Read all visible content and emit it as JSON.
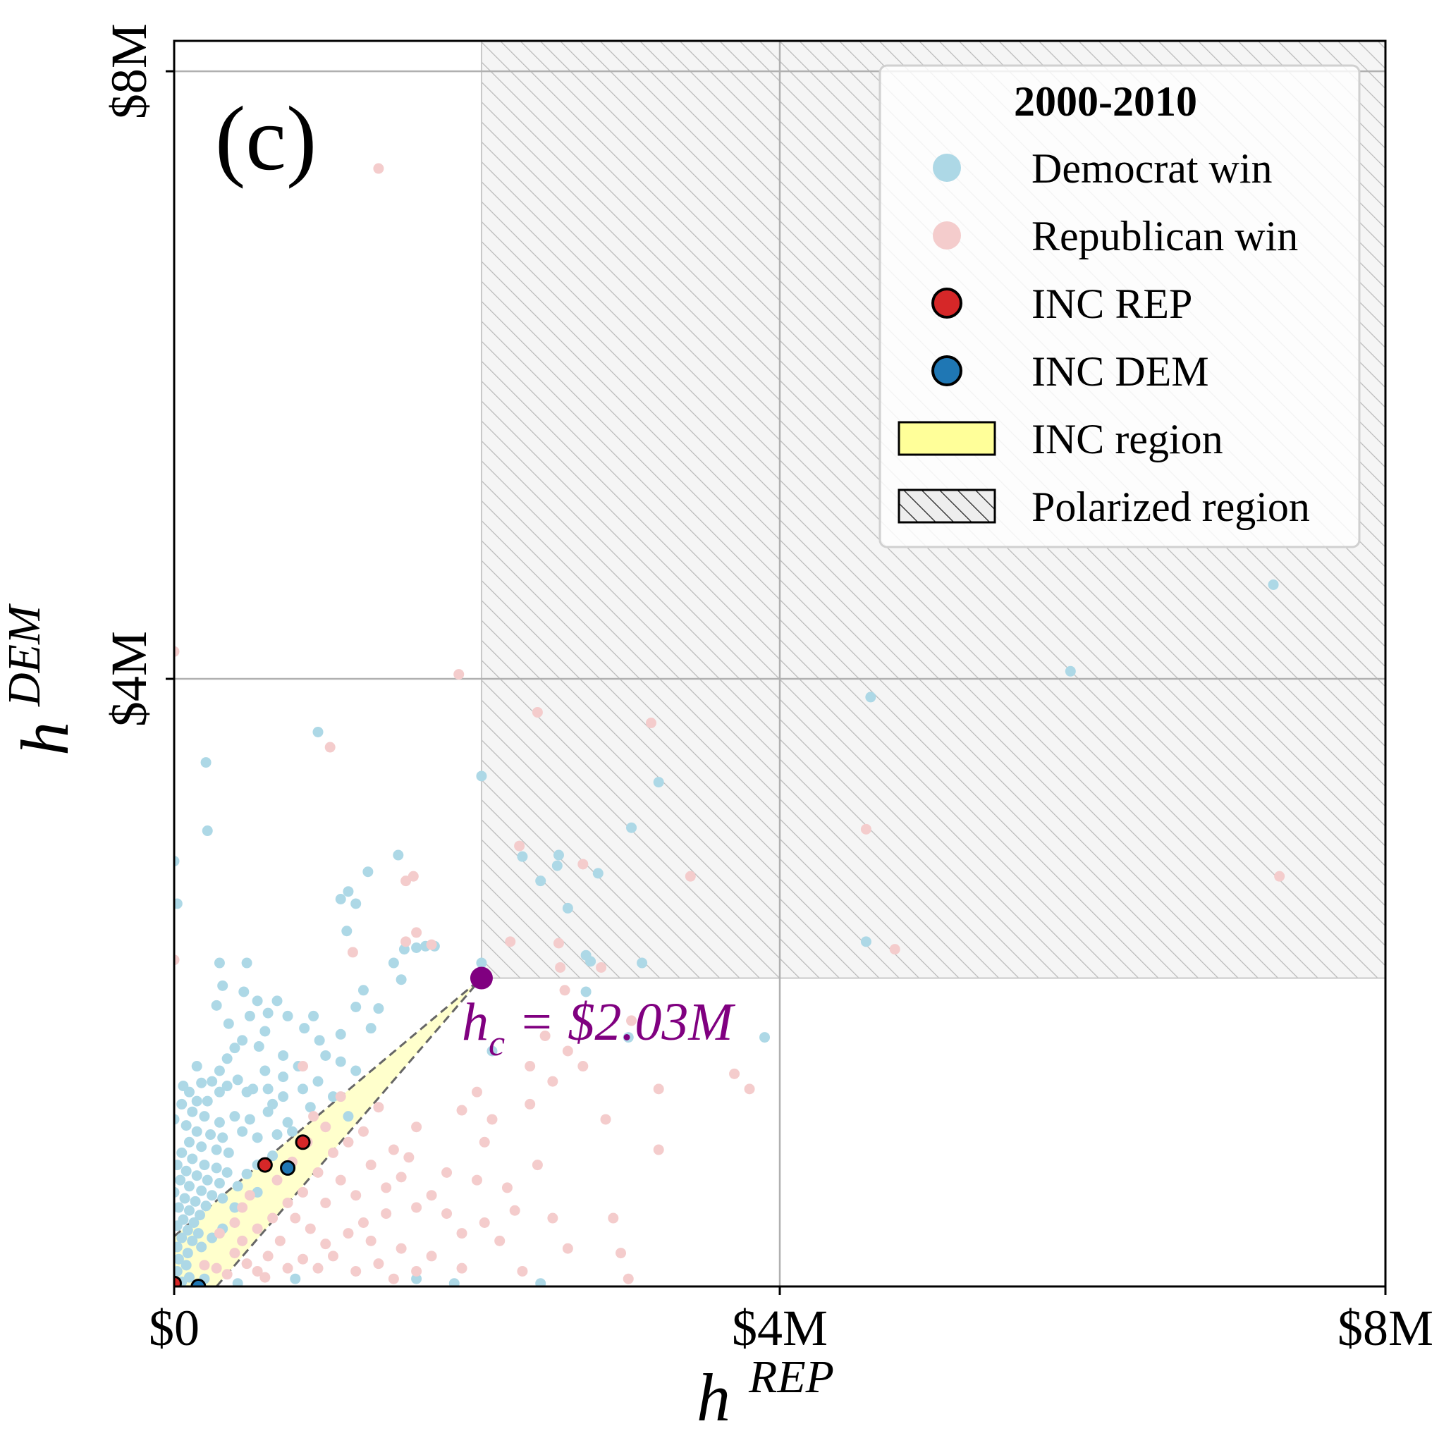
{
  "chart_data": {
    "type": "scatter",
    "panel_label": "(c)",
    "xlabel": "h",
    "xlabel_sup": "REP",
    "ylabel": "h",
    "ylabel_sup": "DEM",
    "xlim": [
      0,
      8
    ],
    "ylim": [
      0,
      8.2
    ],
    "units": "$M",
    "x_ticks": [
      {
        "value": 0,
        "label": "$0"
      },
      {
        "value": 4,
        "label": "$4M"
      },
      {
        "value": 8,
        "label": "$8M"
      }
    ],
    "y_ticks": [
      {
        "value": 4,
        "label": "$4M"
      },
      {
        "value": 8,
        "label": "$8M"
      }
    ],
    "grid": true,
    "polarized_threshold": 2.03,
    "critical_point": {
      "x": 2.03,
      "y": 2.03,
      "label_main": "h",
      "label_sub": "c",
      "label_value": " = $2.03M",
      "color": "#800080"
    },
    "inc_region": [
      [
        0,
        0.33
      ],
      [
        2.03,
        2.03
      ],
      [
        0.28,
        0
      ],
      [
        0,
        0
      ]
    ],
    "legend": {
      "title": "2000-2010",
      "position": "top-right",
      "entries": [
        {
          "label": "Democrat win",
          "kind": "dot",
          "color": "#add8e6"
        },
        {
          "label": "Republican win",
          "kind": "dot",
          "color": "#f4cccc"
        },
        {
          "label": "INC REP",
          "kind": "marker",
          "color": "#d62728"
        },
        {
          "label": "INC DEM",
          "kind": "marker",
          "color": "#1f77b4"
        },
        {
          "label": "INC region",
          "kind": "patch",
          "color": "#ffff99"
        },
        {
          "label": "Polarized region",
          "kind": "hatch",
          "color": "#eeeeee"
        }
      ]
    },
    "series": [
      {
        "name": "Democrat win",
        "color": "#add8e6",
        "points": [
          [
            7.26,
            4.62
          ],
          [
            5.92,
            4.05
          ],
          [
            4.6,
            3.88
          ],
          [
            4.57,
            2.27
          ],
          [
            3.2,
            3.32
          ],
          [
            3.02,
            3.02
          ],
          [
            2.8,
            2.72
          ],
          [
            2.53,
            2.77
          ],
          [
            2.54,
            2.84
          ],
          [
            2.42,
            2.67
          ],
          [
            2.3,
            2.83
          ],
          [
            2.03,
            3.36
          ],
          [
            2.03,
            2.13
          ],
          [
            2.75,
            2.14
          ],
          [
            2.72,
            2.18
          ],
          [
            3.09,
            2.13
          ],
          [
            2.72,
            1.94
          ],
          [
            3.9,
            1.64
          ],
          [
            2.6,
            2.49
          ],
          [
            3.0,
            1.64
          ],
          [
            2.1,
            1.55
          ],
          [
            1.28,
            2.73
          ],
          [
            1.48,
            2.84
          ],
          [
            1.1,
            2.55
          ],
          [
            1.15,
            2.6
          ],
          [
            1.2,
            2.52
          ],
          [
            1.66,
            2.24
          ],
          [
            1.72,
            2.24
          ],
          [
            1.52,
            2.22
          ],
          [
            1.6,
            2.23
          ],
          [
            0.95,
            3.65
          ],
          [
            0.21,
            3.45
          ],
          [
            0.22,
            3.0
          ],
          [
            0.0,
            2.8
          ],
          [
            0.02,
            2.52
          ],
          [
            1.14,
            2.34
          ],
          [
            1.45,
            2.13
          ],
          [
            1.5,
            2.02
          ],
          [
            1.25,
            1.95
          ],
          [
            1.35,
            1.83
          ],
          [
            1.2,
            1.84
          ],
          [
            0.92,
            1.78
          ],
          [
            1.1,
            1.66
          ],
          [
            1.3,
            1.7
          ],
          [
            0.68,
            1.88
          ],
          [
            0.46,
            1.94
          ],
          [
            0.32,
            1.98
          ],
          [
            0.3,
            2.13
          ],
          [
            0.48,
            2.13
          ],
          [
            0.55,
            1.88
          ],
          [
            0.6,
            1.68
          ],
          [
            0.5,
            1.78
          ],
          [
            0.28,
            1.85
          ],
          [
            0.36,
            1.73
          ],
          [
            0.4,
            1.57
          ],
          [
            0.62,
            1.8
          ],
          [
            0.75,
            1.78
          ],
          [
            0.86,
            1.7
          ],
          [
            0.96,
            1.62
          ],
          [
            1.0,
            1.52
          ],
          [
            1.1,
            1.48
          ],
          [
            1.2,
            1.42
          ],
          [
            0.82,
            1.45
          ],
          [
            0.72,
            1.52
          ],
          [
            0.56,
            1.58
          ],
          [
            0.45,
            1.62
          ],
          [
            0.35,
            1.5
          ],
          [
            0.3,
            1.42
          ],
          [
            0.25,
            1.35
          ],
          [
            0.15,
            1.45
          ],
          [
            0.18,
            1.34
          ],
          [
            0.06,
            1.32
          ],
          [
            0.1,
            1.28
          ],
          [
            0.22,
            1.22
          ],
          [
            0.3,
            1.28
          ],
          [
            0.35,
            1.32
          ],
          [
            0.48,
            1.28
          ],
          [
            0.62,
            1.3
          ],
          [
            0.72,
            1.25
          ],
          [
            0.85,
            1.3
          ],
          [
            0.9,
            1.18
          ],
          [
            0.75,
            1.08
          ],
          [
            0.62,
            1.15
          ],
          [
            0.5,
            1.1
          ],
          [
            0.4,
            1.12
          ],
          [
            0.3,
            1.08
          ],
          [
            0.2,
            1.12
          ],
          [
            0.15,
            1.22
          ],
          [
            0.12,
            1.15
          ],
          [
            0.05,
            1.2
          ],
          [
            0.0,
            1.1
          ],
          [
            0.08,
            1.06
          ],
          [
            0.15,
            1.02
          ],
          [
            0.24,
            1.0
          ],
          [
            0.32,
            0.98
          ],
          [
            0.45,
            1.02
          ],
          [
            0.55,
            0.98
          ],
          [
            0.68,
            1.0
          ],
          [
            0.78,
            1.02
          ],
          [
            0.65,
            1.2
          ],
          [
            0.52,
            1.3
          ],
          [
            0.42,
            1.36
          ],
          [
            0.6,
            1.42
          ],
          [
            0.72,
            1.38
          ],
          [
            0.1,
            0.95
          ],
          [
            0.18,
            0.92
          ],
          [
            0.28,
            0.9
          ],
          [
            0.36,
            0.88
          ],
          [
            0.05,
            0.88
          ],
          [
            0.12,
            0.84
          ],
          [
            0.2,
            0.8
          ],
          [
            0.28,
            0.78
          ],
          [
            0.35,
            0.75
          ],
          [
            0.02,
            0.8
          ],
          [
            0.08,
            0.76
          ],
          [
            0.15,
            0.73
          ],
          [
            0.22,
            0.7
          ],
          [
            0.3,
            0.68
          ],
          [
            0.04,
            0.7
          ],
          [
            0.1,
            0.66
          ],
          [
            0.18,
            0.63
          ],
          [
            0.25,
            0.6
          ],
          [
            0.0,
            0.62
          ],
          [
            0.07,
            0.58
          ],
          [
            0.14,
            0.56
          ],
          [
            0.21,
            0.53
          ],
          [
            0.03,
            0.52
          ],
          [
            0.1,
            0.5
          ],
          [
            0.17,
            0.47
          ],
          [
            0.06,
            0.44
          ],
          [
            0.13,
            0.42
          ],
          [
            0.02,
            0.4
          ],
          [
            0.09,
            0.37
          ],
          [
            0.16,
            0.35
          ],
          [
            0.05,
            0.32
          ],
          [
            0.12,
            0.3
          ],
          [
            0.02,
            0.26
          ],
          [
            0.09,
            0.22
          ],
          [
            0.03,
            0.18
          ],
          [
            0.08,
            0.14
          ],
          [
            0.02,
            0.1
          ],
          [
            0.1,
            0.06
          ],
          [
            0.05,
            0.03
          ],
          [
            0.42,
            0.66
          ],
          [
            0.48,
            0.74
          ],
          [
            0.55,
            0.8
          ],
          [
            0.65,
            0.86
          ],
          [
            0.32,
            0.58
          ],
          [
            0.4,
            0.52
          ],
          [
            0.55,
            0.62
          ],
          [
            0.18,
            0.26
          ],
          [
            0.25,
            0.32
          ],
          [
            0.32,
            0.38
          ],
          [
            0.42,
            0.02
          ],
          [
            1.85,
            0.02
          ],
          [
            2.42,
            0.02
          ],
          [
            0.8,
            0.05
          ],
          [
            1.6,
            0.05
          ],
          [
            0.2,
            0.05
          ],
          [
            1.05,
            1.25
          ],
          [
            0.95,
            1.35
          ],
          [
            1.15,
            1.12
          ]
        ]
      },
      {
        "name": "Republican win",
        "color": "#f4cccc",
        "points": [
          [
            1.35,
            7.36
          ],
          [
            1.88,
            4.03
          ],
          [
            2.4,
            3.78
          ],
          [
            3.15,
            3.71
          ],
          [
            4.57,
            3.01
          ],
          [
            7.3,
            2.7
          ],
          [
            3.41,
            2.7
          ],
          [
            2.28,
            2.9
          ],
          [
            2.7,
            2.78
          ],
          [
            1.03,
            3.55
          ],
          [
            1.53,
            2.67
          ],
          [
            1.58,
            2.7
          ],
          [
            1.6,
            2.33
          ],
          [
            1.7,
            2.25
          ],
          [
            1.53,
            2.27
          ],
          [
            1.18,
            2.2
          ],
          [
            2.22,
            2.27
          ],
          [
            2.55,
            2.1
          ],
          [
            2.54,
            2.26
          ],
          [
            2.82,
            2.1
          ],
          [
            4.76,
            2.22
          ],
          [
            3.8,
            1.3
          ],
          [
            2.7,
            1.45
          ],
          [
            2.6,
            1.55
          ],
          [
            2.5,
            1.35
          ],
          [
            3.2,
            1.3
          ],
          [
            3.7,
            1.4
          ],
          [
            2.85,
            1.1
          ],
          [
            3.2,
            0.9
          ],
          [
            2.35,
            1.2
          ],
          [
            2.4,
            0.8
          ],
          [
            2.1,
            1.1
          ],
          [
            2.0,
            1.28
          ],
          [
            1.9,
            1.16
          ],
          [
            2.05,
            0.95
          ],
          [
            2.2,
            0.65
          ],
          [
            2.25,
            0.5
          ],
          [
            2.0,
            0.7
          ],
          [
            1.8,
            0.75
          ],
          [
            1.6,
            1.05
          ],
          [
            1.55,
            0.85
          ],
          [
            1.45,
            0.9
          ],
          [
            1.3,
            0.8
          ],
          [
            1.2,
            0.6
          ],
          [
            1.1,
            0.7
          ],
          [
            1.0,
            0.55
          ],
          [
            1.4,
            0.48
          ],
          [
            1.6,
            0.52
          ],
          [
            1.8,
            0.48
          ],
          [
            1.9,
            0.35
          ],
          [
            2.15,
            0.3
          ],
          [
            2.5,
            0.45
          ],
          [
            2.6,
            0.25
          ],
          [
            2.9,
            0.45
          ],
          [
            2.95,
            0.22
          ],
          [
            3.0,
            0.05
          ],
          [
            2.3,
            0.1
          ],
          [
            1.9,
            0.12
          ],
          [
            1.7,
            0.2
          ],
          [
            1.5,
            0.25
          ],
          [
            1.3,
            0.3
          ],
          [
            1.15,
            0.35
          ],
          [
            1.0,
            0.28
          ],
          [
            0.9,
            0.38
          ],
          [
            0.8,
            0.45
          ],
          [
            0.7,
            0.3
          ],
          [
            0.62,
            0.2
          ],
          [
            0.55,
            0.1
          ],
          [
            0.48,
            0.15
          ],
          [
            0.4,
            0.22
          ],
          [
            0.35,
            0.08
          ],
          [
            0.28,
            0.12
          ],
          [
            0.2,
            0.14
          ],
          [
            0.6,
            0.06
          ],
          [
            0.75,
            0.12
          ],
          [
            0.85,
            0.18
          ],
          [
            0.95,
            0.12
          ],
          [
            1.05,
            0.2
          ],
          [
            1.2,
            0.1
          ],
          [
            1.35,
            0.15
          ],
          [
            1.45,
            0.05
          ],
          [
            1.6,
            0.1
          ],
          [
            0.85,
            0.62
          ],
          [
            0.95,
            0.75
          ],
          [
            1.05,
            0.88
          ],
          [
            1.15,
            0.95
          ],
          [
            0.75,
            0.55
          ],
          [
            0.65,
            0.45
          ],
          [
            0.55,
            0.38
          ],
          [
            0.45,
            0.3
          ],
          [
            0.3,
            0.35
          ],
          [
            1.25,
            1.02
          ],
          [
            1.35,
            1.18
          ],
          [
            1.0,
            1.05
          ],
          [
            1.1,
            1.25
          ],
          [
            0.88,
            0.95
          ],
          [
            0.78,
            0.82
          ],
          [
            0.68,
            0.7
          ],
          [
            0.85,
            1.45
          ],
          [
            0.92,
            1.12
          ],
          [
            0.45,
            0.52
          ],
          [
            0.5,
            0.6
          ],
          [
            0.4,
            0.42
          ],
          [
            1.25,
            0.42
          ],
          [
            1.4,
            0.65
          ],
          [
            1.5,
            0.72
          ],
          [
            1.7,
            0.6
          ],
          [
            2.05,
            0.42
          ],
          [
            2.35,
            1.45
          ],
          [
            2.45,
            1.65
          ],
          [
            2.58,
            1.95
          ],
          [
            3.02,
            1.75
          ],
          [
            0.0,
            4.18
          ],
          [
            0.0,
            2.15
          ]
        ]
      }
    ],
    "incumbents": [
      {
        "name": "INC REP",
        "color": "#d62728",
        "points": [
          [
            0.6,
            0.8
          ],
          [
            0.85,
            0.95
          ],
          [
            0.0,
            0.02
          ]
        ]
      },
      {
        "name": "INC DEM",
        "color": "#1f77b4",
        "points": [
          [
            0.75,
            0.78
          ],
          [
            0.16,
            0.0
          ]
        ]
      }
    ]
  }
}
